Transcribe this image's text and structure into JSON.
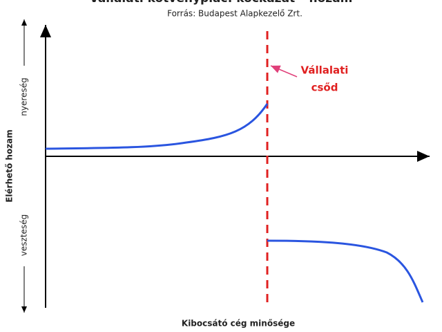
{
  "header": {
    "title": "Vállalati kötvénypiac: kockázat – hozam",
    "subtitle": "Forrás: Budapest Alapkezelő Zrt."
  },
  "axes": {
    "y_label": "Elérhető hozam",
    "y_top": "nyereség",
    "y_bottom": "veszteség",
    "x_label": "Kibocsátó cég minősége"
  },
  "annotation": {
    "lines": [
      "Vállalati",
      "csőd"
    ]
  }
}
